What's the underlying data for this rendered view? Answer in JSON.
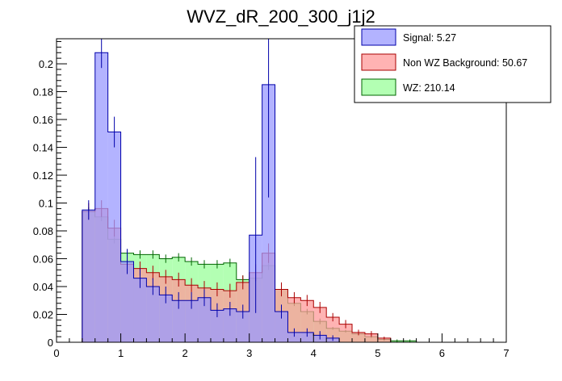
{
  "chart_data": {
    "type": "histogram",
    "title": "WVZ_dR_200_300_j1j2",
    "xlabel": "",
    "ylabel": "",
    "xlim": [
      0,
      7
    ],
    "ylim": [
      0,
      0.218
    ],
    "bin_width": 0.2,
    "bin_start": 0.4,
    "x_ticks": [
      "0",
      "1",
      "2",
      "3",
      "4",
      "5",
      "6",
      "7"
    ],
    "y_ticks": [
      "0",
      "0.02",
      "0.04",
      "0.06",
      "0.08",
      "0.1",
      "0.12",
      "0.14",
      "0.16",
      "0.18",
      "0.2"
    ],
    "legend_position": "top-right",
    "series": [
      {
        "name": "Signal: 5.27",
        "color": "#9999ff",
        "line_color": "#0000aa",
        "opacity": 0.75,
        "values": [
          0.095,
          0.208,
          0.151,
          0.058,
          0.046,
          0.04,
          0.034,
          0.03,
          0.03,
          0.032,
          0.023,
          0.024,
          0.022,
          0.077,
          0.185,
          0.022,
          0.007,
          0.007,
          0.005,
          0.003,
          0.0,
          0.0,
          0.0,
          0.0,
          0.0,
          0.0,
          0.0,
          0.0,
          0.0,
          0.0,
          0.0,
          0.0
        ],
        "errors": [
          0.007,
          0.011,
          0.011,
          0.009,
          0.007,
          0.006,
          0.006,
          0.006,
          0.006,
          0.006,
          0.005,
          0.005,
          0.005,
          0.056,
          0.081,
          0.005,
          0.003,
          0.003,
          0.003,
          0.002,
          0,
          0,
          0,
          0,
          0,
          0,
          0,
          0,
          0,
          0,
          0,
          0
        ]
      },
      {
        "name": "Non WZ Background: 50.67",
        "color": "#ff9999",
        "line_color": "#aa0000",
        "opacity": 0.75,
        "values": [
          0.094,
          0.096,
          0.082,
          0.056,
          0.053,
          0.05,
          0.047,
          0.045,
          0.041,
          0.039,
          0.038,
          0.037,
          0.043,
          0.05,
          0.064,
          0.038,
          0.032,
          0.03,
          0.025,
          0.018,
          0.013,
          0.007,
          0.006,
          0.003,
          0.0,
          0.0,
          0.0,
          0.0,
          0.0,
          0.0,
          0.0,
          0.0
        ],
        "errors": [
          0.006,
          0.006,
          0.006,
          0.005,
          0.005,
          0.005,
          0.005,
          0.005,
          0.005,
          0.005,
          0.005,
          0.005,
          0.005,
          0.006,
          0.007,
          0.005,
          0.004,
          0.004,
          0.004,
          0.003,
          0.003,
          0.002,
          0.002,
          0.001,
          0,
          0,
          0,
          0,
          0,
          0,
          0,
          0
        ]
      },
      {
        "name": "WZ: 210.14",
        "color": "#99ff99",
        "line_color": "#006600",
        "opacity": 0.75,
        "values": [
          0.094,
          0.09,
          0.074,
          0.064,
          0.063,
          0.063,
          0.06,
          0.061,
          0.058,
          0.056,
          0.056,
          0.057,
          0.045,
          0.046,
          0.055,
          0.038,
          0.028,
          0.022,
          0.015,
          0.01,
          0.008,
          0.006,
          0.004,
          0.002,
          0.001,
          0.001,
          0.0,
          0.0,
          0.0,
          0.0,
          0.0,
          0.0
        ],
        "errors": [
          0.003,
          0.003,
          0.003,
          0.003,
          0.003,
          0.003,
          0.003,
          0.003,
          0.003,
          0.003,
          0.003,
          0.003,
          0.003,
          0.003,
          0.003,
          0.002,
          0.002,
          0.002,
          0.002,
          0.001,
          0.001,
          0.001,
          0.001,
          0.001,
          0.001,
          0.001,
          0,
          0,
          0,
          0,
          0,
          0
        ]
      }
    ]
  }
}
